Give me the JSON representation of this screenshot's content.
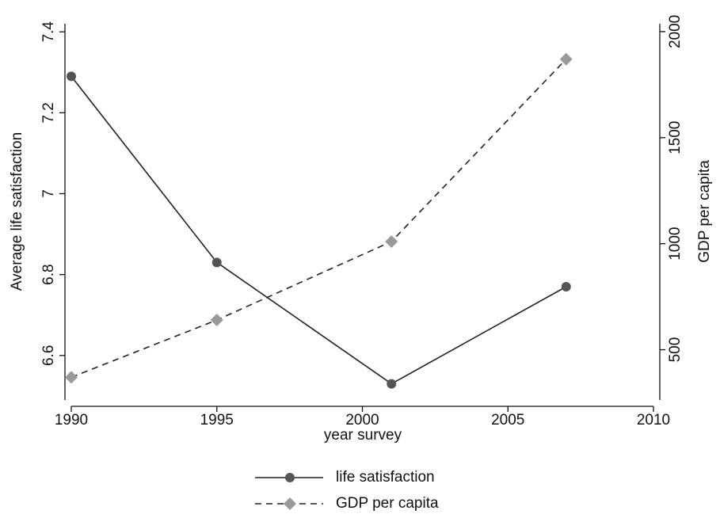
{
  "chart_data": {
    "type": "line",
    "x_label": "year survey",
    "y_label": "Average life satisfaction",
    "y2_label": "GDP per capita",
    "x": [
      1990,
      1995,
      2001,
      2007
    ],
    "series": [
      {
        "name": "life satisfaction",
        "color": "#555555",
        "line_color": "#222222",
        "dash": "solid",
        "marker": "circle",
        "values": [
          7.29,
          6.83,
          6.53,
          6.77
        ]
      },
      {
        "name": "GDP per capita",
        "color": "#999999",
        "line_color": "#222222",
        "dash": "dashed",
        "marker": "diamond",
        "axis": "y2",
        "values": [
          370,
          640,
          1010,
          1870
        ]
      }
    ],
    "xlim": [
      1990,
      2010
    ],
    "xticks": [
      1990,
      1995,
      2000,
      2005,
      2010
    ],
    "ylim": [
      6.49,
      7.42
    ],
    "yticks": [
      6.6,
      6.8,
      7,
      7.2,
      7.4
    ],
    "y2lim": [
      263,
      2037
    ],
    "y2ticks": [
      500,
      1000,
      1500,
      2000
    ],
    "grid": false,
    "legend": "bottom"
  }
}
